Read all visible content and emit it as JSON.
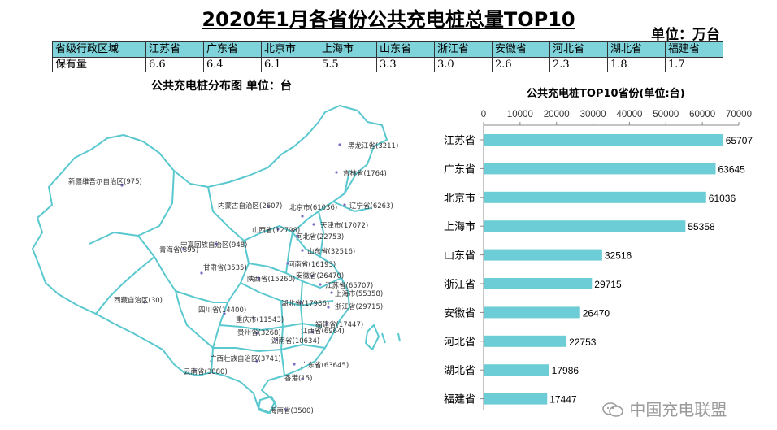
{
  "title": "2020年1月各省份公共充电桩总量TOP10",
  "unit_label": "单位：万台",
  "summary_table": {
    "row_headers": [
      "省级行政区域",
      "保有量"
    ],
    "provinces": [
      "江苏省",
      "广东省",
      "北京市",
      "上海市",
      "山东省",
      "浙江省",
      "安徽省",
      "河北省",
      "湖北省",
      "福建省"
    ],
    "values": [
      "6.6",
      "6.4",
      "6.1",
      "5.5",
      "3.3",
      "3.0",
      "2.6",
      "2.3",
      "1.8",
      "1.7"
    ]
  },
  "map": {
    "title": "公共充电桩分布图  单位：台",
    "labels": [
      "黑龙江省(3211)",
      "吉林省(1764)",
      "辽宁省(6263)",
      "北京市(61036)",
      "天津市(17072)",
      "内蒙古自治区(2607)",
      "新疆维吾尔自治区(975)",
      "山西省(12798)",
      "河北省(22753)",
      "山东省(32516)",
      "宁夏回族自治区(948)",
      "青海省(895)",
      "甘肃省(3535)",
      "河南省(16193)",
      "陕西省(15260)",
      "安徽省(26470)",
      "江苏省(65707)",
      "上海市(55358)",
      "湖北省(17986)",
      "浙江省(29715)",
      "西藏自治区(30)",
      "四川省(14400)",
      "重庆市(11543)",
      "福建省(17447)",
      "江西省(6964)",
      "贵州省(3268)",
      "湖南省(10634)",
      "广西壮族自治区(3741)",
      "广东省(63645)",
      "云南省(3880)",
      "香港(15)",
      "海南省(3500)"
    ]
  },
  "chart_data": {
    "type": "bar",
    "orientation": "horizontal",
    "title": "公共充电桩TOP10省份(单位:台)",
    "categories": [
      "江苏省",
      "广东省",
      "北京市",
      "上海市",
      "山东省",
      "浙江省",
      "安徽省",
      "河北省",
      "湖北省",
      "福建省"
    ],
    "values": [
      65707,
      63645,
      61036,
      55358,
      32516,
      29715,
      26470,
      22753,
      17986,
      17447
    ],
    "xlim": [
      0,
      70000
    ],
    "xticks": [
      "0",
      "10000",
      "20000",
      "30000",
      "40000",
      "50000",
      "60000",
      "70000"
    ],
    "axis_position": "top",
    "grid": false,
    "legend": "none",
    "bar_color": "#6dcdd6"
  },
  "watermark": "中国充电联盟",
  "colors": {
    "header_fill": "#7fd4db",
    "map_outline": "#5ac8cf",
    "bar": "#6dcdd6"
  }
}
